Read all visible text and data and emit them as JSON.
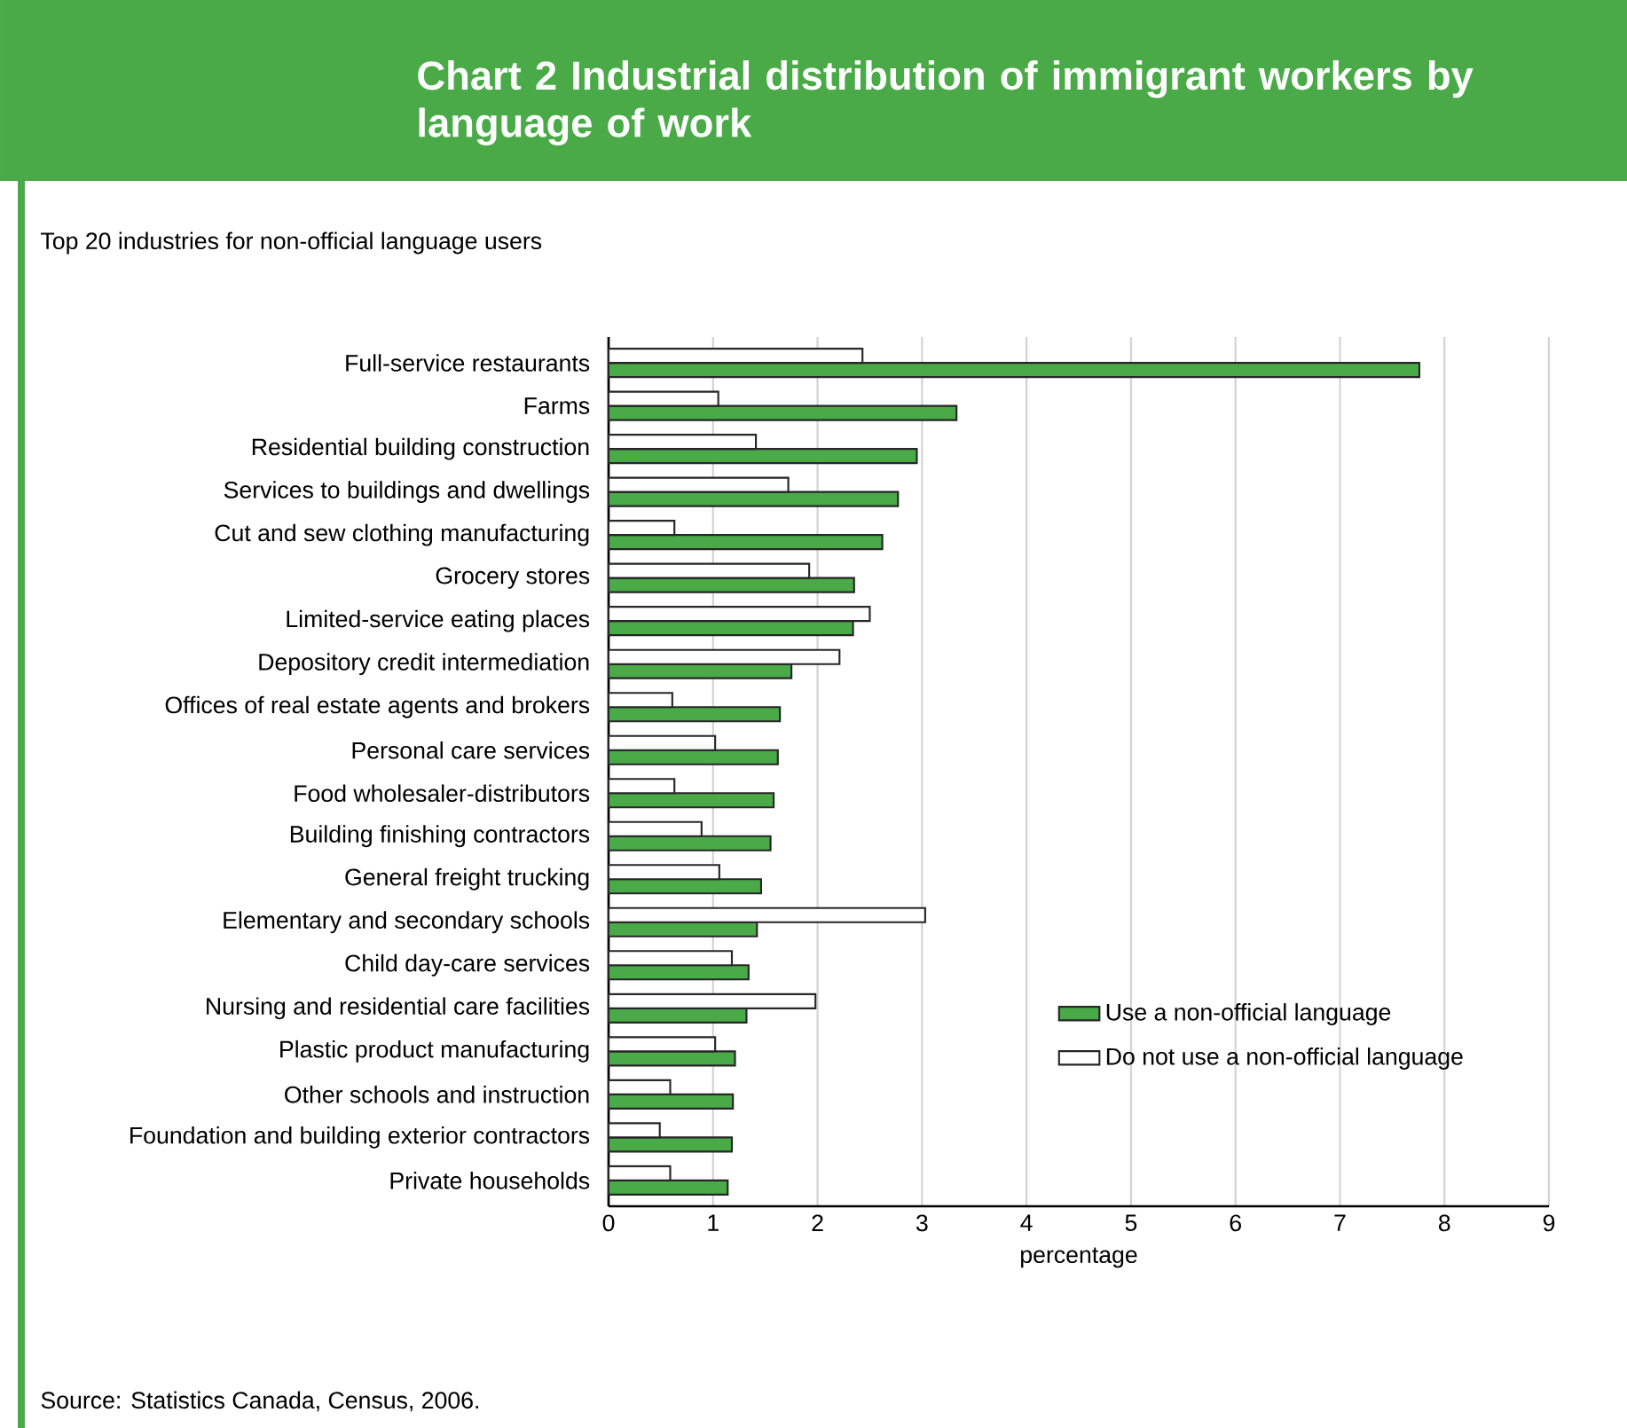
{
  "chart_data": {
    "type": "bar",
    "orientation": "horizontal",
    "title": "Chart 2  Industrial distribution of immigrant workers by language of work",
    "subtitle": "Top 20 industries for non-official language users",
    "xlabel": "percentage",
    "categories": [
      "Full-service restaurants",
      "Farms",
      "Residential building construction",
      "Services to buildings and dwellings",
      "Cut and sew clothing manufacturing",
      "Grocery stores",
      "Limited-service eating places",
      "Depository credit intermediation",
      "Offices of real estate agents and brokers",
      "Personal care services",
      "Food wholesaler-distributors",
      "Building finishing contractors",
      "General freight trucking",
      "Elementary and secondary schools",
      "Child day-care services",
      "Nursing and residential care facilities",
      "Plastic product manufacturing",
      "Other schools and instruction",
      "Foundation and building exterior contractors",
      "Private households"
    ],
    "series": [
      {
        "name": "Use a non-official language",
        "color": "#4aaa48",
        "values": [
          7.76,
          3.33,
          2.95,
          2.77,
          2.62,
          2.35,
          2.34,
          1.75,
          1.64,
          1.62,
          1.58,
          1.55,
          1.46,
          1.42,
          1.34,
          1.32,
          1.21,
          1.19,
          1.18,
          1.14
        ]
      },
      {
        "name": "Do not use a non-official language",
        "color": "#ffffff",
        "values": [
          2.43,
          1.05,
          1.41,
          1.72,
          0.63,
          1.92,
          2.5,
          2.21,
          0.61,
          1.02,
          0.63,
          0.89,
          1.06,
          3.03,
          1.18,
          1.98,
          1.02,
          0.59,
          0.49,
          0.59
        ]
      }
    ],
    "xlim": [
      0,
      9
    ],
    "xticks": [
      0,
      1,
      2,
      3,
      4,
      5,
      6,
      7,
      8,
      9
    ],
    "grid": "x",
    "legend": "bottom right",
    "annotations": [
      "Source: Statistics Canada, Census, 2006."
    ]
  }
}
